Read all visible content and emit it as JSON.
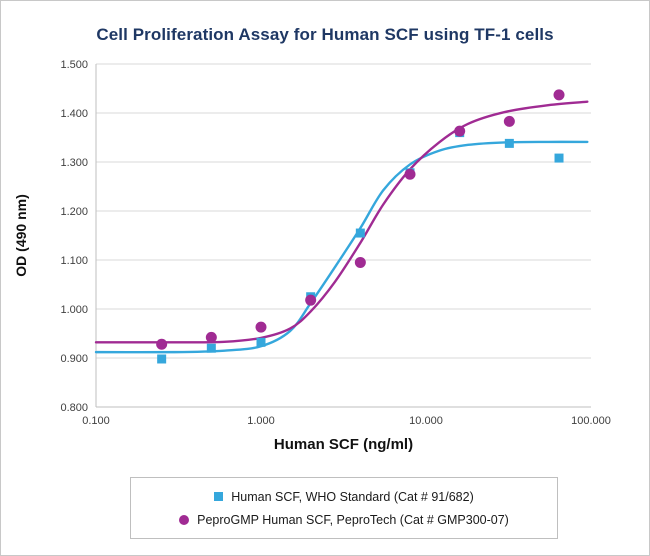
{
  "page": {
    "background": "#FFFFFF",
    "frame_border_color": "#C8C8C8"
  },
  "chart_data": {
    "type": "scatter",
    "subtype": "dose-response sigmoid curves with markers",
    "title": "Cell Proliferation Assay for Human SCF using TF-1 cells",
    "title_color": "#1F3864",
    "xlabel": "Human SCF (ng/ml)",
    "ylabel": "OD (490 nm)",
    "x_scale": "log10",
    "xlim": [
      0.1,
      100
    ],
    "ylim": [
      0.8,
      1.5
    ],
    "grid": "horizontal",
    "grid_color": "#D9D9D9",
    "axis_color": "#BFBFBF",
    "tick_label_color": "#404040",
    "axis_title_color": "#111111",
    "legend_position": "bottom",
    "legend_border_color": "#BFBFBF",
    "x_ticks": [
      {
        "value": 0.1,
        "label": "0.100"
      },
      {
        "value": 1,
        "label": "1.000"
      },
      {
        "value": 10,
        "label": "10.000"
      },
      {
        "value": 100,
        "label": "100.000"
      }
    ],
    "y_ticks": [
      {
        "value": 0.8,
        "label": "0.800"
      },
      {
        "value": 0.9,
        "label": "0.900"
      },
      {
        "value": 1.0,
        "label": "1.000"
      },
      {
        "value": 1.1,
        "label": "1.100"
      },
      {
        "value": 1.2,
        "label": "1.200"
      },
      {
        "value": 1.3,
        "label": "1.300"
      },
      {
        "value": 1.4,
        "label": "1.400"
      },
      {
        "value": 1.5,
        "label": "1.500"
      }
    ],
    "series": [
      {
        "name": "Human SCF, WHO Standard (Cat # 91/682)",
        "color": "#35A7DC",
        "marker": "square",
        "points": [
          [
            0.25,
            0.898
          ],
          [
            0.5,
            0.92
          ],
          [
            1.0,
            0.932
          ],
          [
            2.0,
            1.025
          ],
          [
            4.0,
            1.155
          ],
          [
            8.0,
            1.278
          ],
          [
            16,
            1.36
          ],
          [
            32,
            1.338
          ],
          [
            64,
            1.308
          ]
        ],
        "curve": [
          [
            0.1,
            0.912
          ],
          [
            0.3,
            0.912
          ],
          [
            0.6,
            0.915
          ],
          [
            1.0,
            0.924
          ],
          [
            1.5,
            0.955
          ],
          [
            2.0,
            1.012
          ],
          [
            2.8,
            1.085
          ],
          [
            4.0,
            1.165
          ],
          [
            5.5,
            1.242
          ],
          [
            8.0,
            1.295
          ],
          [
            12,
            1.323
          ],
          [
            18,
            1.335
          ],
          [
            30,
            1.34
          ],
          [
            55,
            1.341
          ],
          [
            95,
            1.341
          ]
        ]
      },
      {
        "name": "PeproGMP Human SCF, PeproTech (Cat # GMP300-07)",
        "color": "#A02B93",
        "marker": "circle",
        "points": [
          [
            0.25,
            0.928
          ],
          [
            0.5,
            0.942
          ],
          [
            1.0,
            0.963
          ],
          [
            2.0,
            1.018
          ],
          [
            4.0,
            1.095
          ],
          [
            8.0,
            1.275
          ],
          [
            16,
            1.363
          ],
          [
            32,
            1.383
          ],
          [
            64,
            1.437
          ]
        ],
        "curve": [
          [
            0.1,
            0.932
          ],
          [
            0.3,
            0.932
          ],
          [
            0.6,
            0.933
          ],
          [
            1.0,
            0.941
          ],
          [
            1.5,
            0.96
          ],
          [
            2.0,
            0.995
          ],
          [
            2.8,
            1.055
          ],
          [
            4.0,
            1.135
          ],
          [
            5.5,
            1.213
          ],
          [
            8.0,
            1.285
          ],
          [
            12,
            1.34
          ],
          [
            18,
            1.378
          ],
          [
            30,
            1.402
          ],
          [
            55,
            1.416
          ],
          [
            95,
            1.423
          ]
        ]
      }
    ]
  }
}
